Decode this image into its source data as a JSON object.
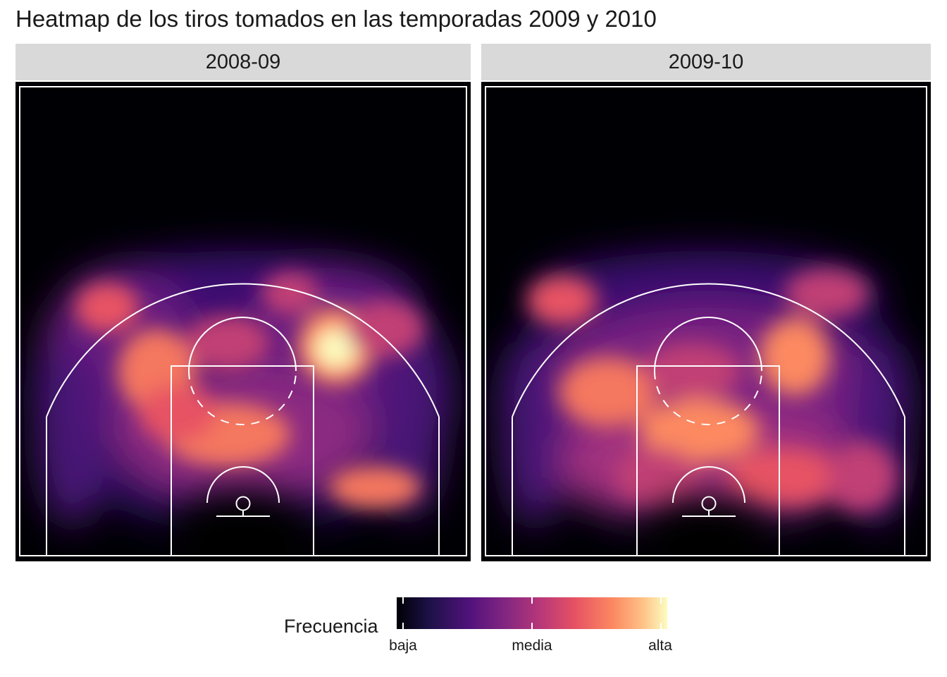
{
  "chart_data": {
    "type": "heatmap",
    "title": "Heatmap de los tiros tomados en las temporadas 2009 y 2010",
    "facets": [
      "2008-09",
      "2009-10"
    ],
    "legend": {
      "title": "Frecuencia",
      "labels": [
        "baja",
        "media",
        "alta"
      ],
      "placement": "bottom",
      "colormap": "magma",
      "colors": [
        "#000004",
        "#1d1147",
        "#51127c",
        "#822681",
        "#b73779",
        "#e75263",
        "#fc8961",
        "#fec287",
        "#fcfdbf"
      ]
    },
    "grid": false,
    "court_lines_color": "#ffffff",
    "background_color": "#000004"
  }
}
